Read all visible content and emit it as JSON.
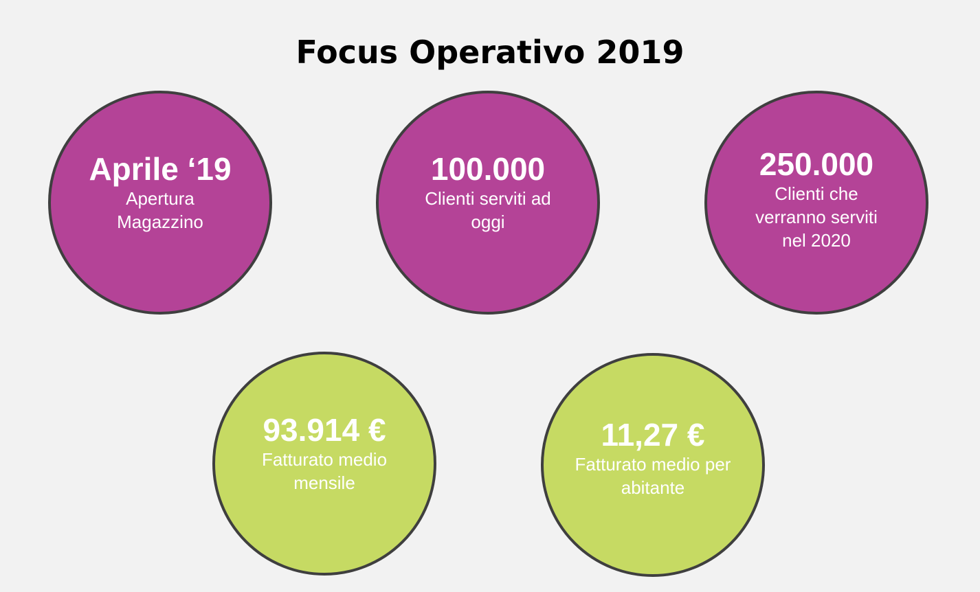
{
  "title": "Focus Operativo 2019",
  "colors": {
    "background": "#f2f2f2",
    "purple": "#b44397",
    "green": "#c6da63",
    "border": "#3f3f3f"
  },
  "stats": [
    {
      "value": "Aprile ‘19",
      "label": "Apertura Magazzino"
    },
    {
      "value": "100.000",
      "label": "Clienti serviti ad oggi"
    },
    {
      "value": "250.000",
      "label": "Clienti che verranno serviti nel 2020"
    },
    {
      "value": "93.914 €",
      "label": "Fatturato medio mensile"
    },
    {
      "value": "11,27 €",
      "label": "Fatturato medio per abitante"
    }
  ]
}
